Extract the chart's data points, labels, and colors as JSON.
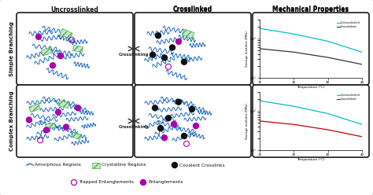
{
  "bg_color": "#f0f0f0",
  "panel_border": "#1a1a1a",
  "top_labels": [
    "Uncrosslinked",
    "Crosslinked",
    "Mechanical Properties"
  ],
  "left_labels": [
    "Simple Branching",
    "Complex Branching"
  ],
  "arrow_label": "Crosslinking",
  "graph_xlabel": "Temperature (°C)",
  "graph_ylabel": "Storage modulus (MPa)",
  "graph_legend": [
    "Uncrosslinked",
    "Crosslinked"
  ],
  "curve_color_uncross": "#00bcd4",
  "curve_color_cross_simple": "#333333",
  "curve_color_cross_complex": "#cc0000",
  "amorphous_color": "#1565c0",
  "crystalline_color": "#4caf50",
  "entanglement_color": "#aa00aa",
  "covalent_color": "#111111",
  "legend_items": [
    {
      "label": "Amorphous Regions",
      "type": "line",
      "color": "#1565c0"
    },
    {
      "label": "Crystalline Regions",
      "type": "patch",
      "color": "#4caf50"
    },
    {
      "label": "Covalent Crosslinks",
      "type": "dot",
      "color": "#111111"
    },
    {
      "label": "Trapped Entanglements",
      "type": "circle",
      "color": "#aa00aa"
    },
    {
      "label": "Entanglements",
      "type": "dot",
      "color": "#aa00aa"
    }
  ]
}
